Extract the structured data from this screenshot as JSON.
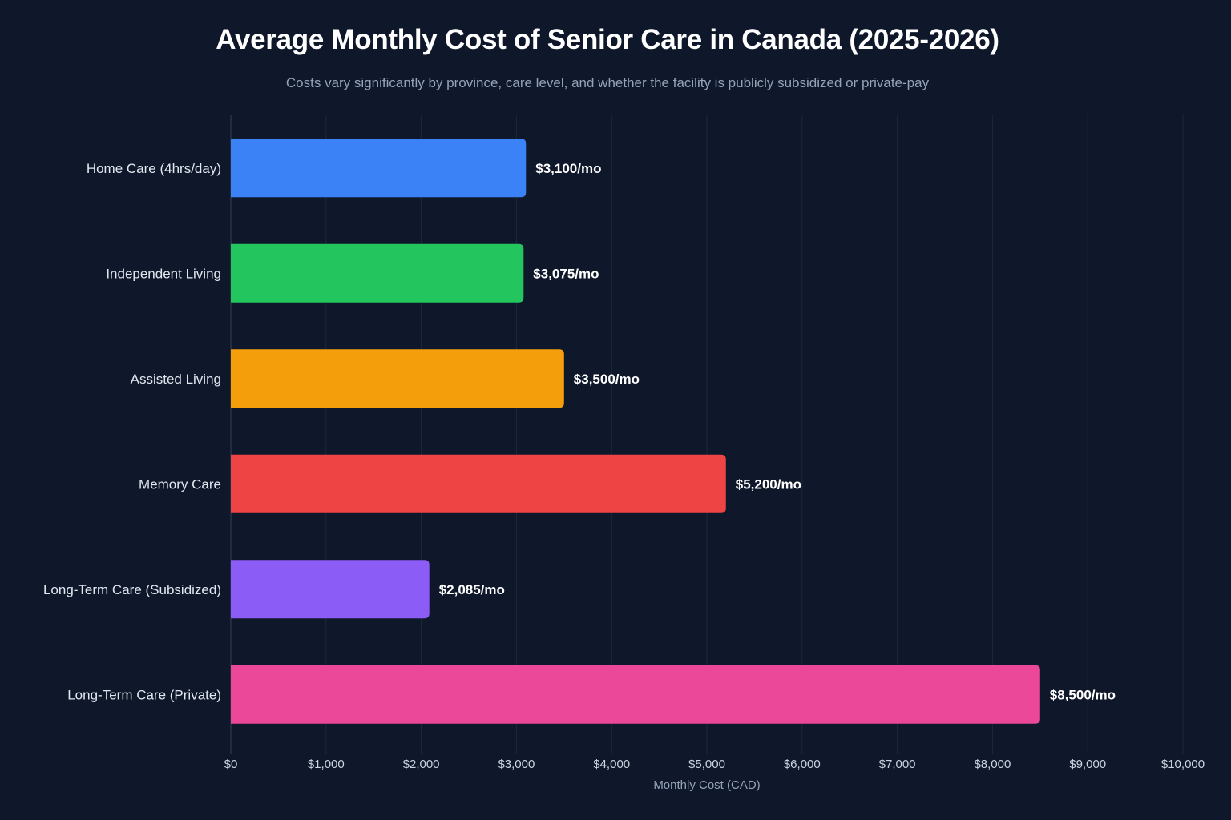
{
  "chart_data": {
    "type": "bar",
    "orientation": "horizontal",
    "title": "Average Monthly Cost of Senior Care in Canada (2025-2026)",
    "subtitle": "Costs vary significantly by province, care level, and whether the facility is publicly subsidized or private-pay",
    "xlabel": "Monthly Cost (CAD)",
    "ylabel": "",
    "xlim": [
      0,
      10000
    ],
    "grid": true,
    "categories": [
      "Home Care (4hrs/day)",
      "Independent Living",
      "Assisted Living",
      "Memory Care",
      "Long-Term Care (Subsidized)",
      "Long-Term Care (Private)"
    ],
    "values": [
      3100,
      3075,
      3500,
      5200,
      2085,
      8500
    ],
    "value_labels": [
      "$3,100/mo",
      "$3,075/mo",
      "$3,500/mo",
      "$5,200/mo",
      "$2,085/mo",
      "$8,500/mo"
    ],
    "colors": [
      "#3b82f6",
      "#22c55e",
      "#f59e0b",
      "#ef4444",
      "#8b5cf6",
      "#ec4899"
    ],
    "x_ticks": [
      0,
      1000,
      2000,
      3000,
      4000,
      5000,
      6000,
      7000,
      8000,
      9000,
      10000
    ],
    "x_tick_labels": [
      "$0",
      "$1,000",
      "$2,000",
      "$3,000",
      "$4,000",
      "$5,000",
      "$6,000",
      "$7,000",
      "$8,000",
      "$9,000",
      "$10,000"
    ]
  },
  "theme": {
    "background": "#0f172a",
    "grid_color": "#1e293b"
  }
}
